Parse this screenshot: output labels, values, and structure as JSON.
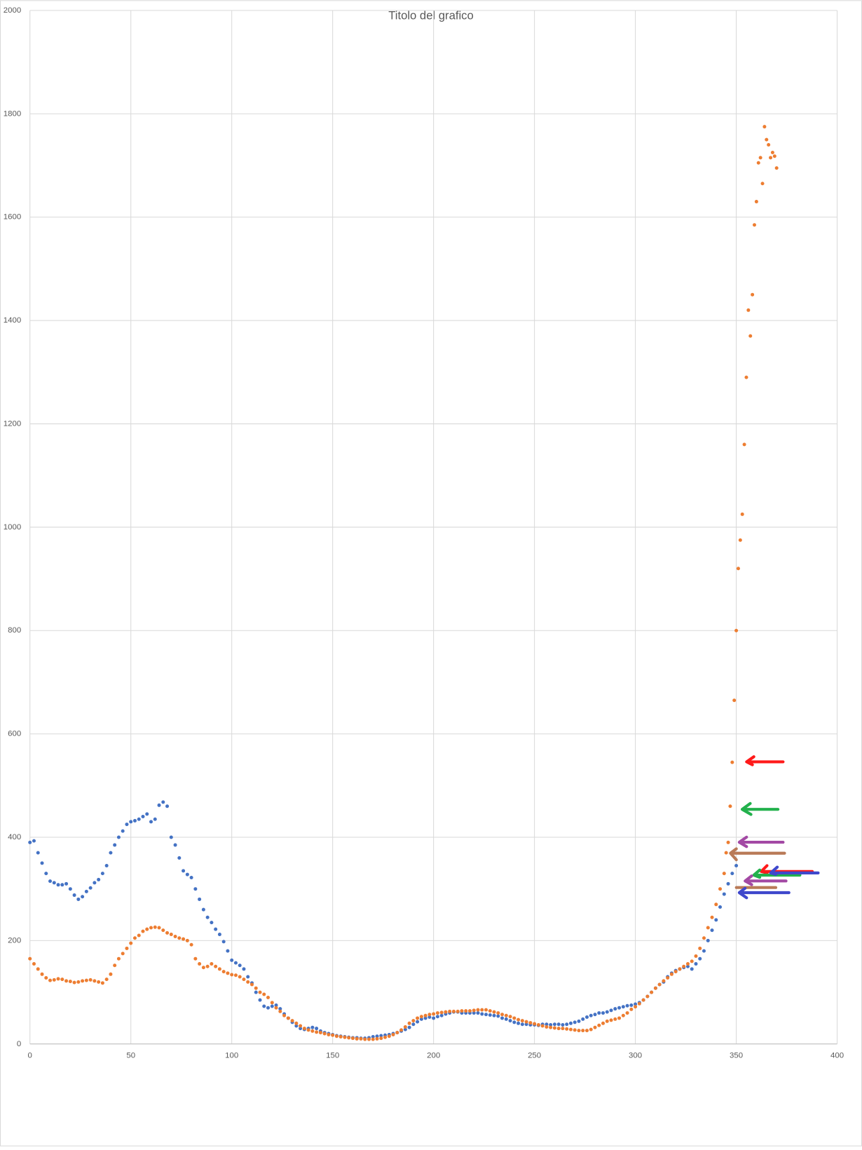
{
  "chart_data": {
    "type": "scatter",
    "title": "Titolo del grafico",
    "xlim": [
      0,
      400
    ],
    "xticks": [
      0,
      50,
      100,
      150,
      200,
      250,
      300,
      350,
      400
    ],
    "ylim": [
      0,
      2000
    ],
    "yticks": [
      0,
      200,
      400,
      600,
      800,
      1000,
      1200,
      1400,
      1600,
      1800,
      2000
    ],
    "grid": true,
    "series": [
      {
        "color": "#4472c4",
        "x": [
          0,
          2,
          4,
          6,
          8,
          10,
          12,
          14,
          16,
          18,
          20,
          22,
          24,
          26,
          28,
          30,
          32,
          34,
          36,
          38,
          40,
          42,
          44,
          46,
          48,
          50,
          52,
          54,
          56,
          58,
          60,
          62,
          64,
          66,
          68,
          70,
          72,
          74,
          76,
          78,
          80,
          82,
          84,
          86,
          88,
          90,
          92,
          94,
          96,
          98,
          100,
          102,
          104,
          106,
          108,
          110,
          112,
          114,
          116,
          118,
          120,
          122,
          124,
          126,
          128,
          130,
          132,
          134,
          136,
          138,
          140,
          142,
          144,
          146,
          148,
          150,
          152,
          154,
          156,
          158,
          160,
          162,
          164,
          166,
          168,
          170,
          172,
          174,
          176,
          178,
          180,
          182,
          184,
          186,
          188,
          190,
          192,
          194,
          196,
          198,
          200,
          202,
          204,
          206,
          208,
          210,
          212,
          214,
          216,
          218,
          220,
          222,
          224,
          226,
          228,
          230,
          232,
          234,
          236,
          238,
          240,
          242,
          244,
          246,
          248,
          250,
          252,
          254,
          256,
          258,
          260,
          262,
          264,
          266,
          268,
          270,
          272,
          274,
          276,
          278,
          280,
          282,
          284,
          286,
          288,
          290,
          292,
          294,
          296,
          298,
          300,
          302,
          304,
          306,
          308,
          310,
          312,
          314,
          316,
          318,
          320,
          322,
          324,
          326,
          328,
          330,
          332,
          334,
          336,
          338,
          340,
          342,
          344,
          346,
          348,
          350
        ],
        "values": [
          390,
          393,
          370,
          350,
          330,
          315,
          312,
          308,
          308,
          310,
          300,
          288,
          280,
          285,
          295,
          302,
          312,
          318,
          330,
          345,
          370,
          385,
          400,
          412,
          425,
          430,
          432,
          435,
          440,
          445,
          430,
          435,
          462,
          468,
          460,
          400,
          385,
          360,
          335,
          328,
          322,
          300,
          280,
          260,
          245,
          235,
          222,
          212,
          198,
          180,
          162,
          157,
          152,
          145,
          130,
          118,
          100,
          85,
          73,
          70,
          73,
          75,
          68,
          58,
          50,
          42,
          35,
          30,
          28,
          30,
          32,
          30,
          25,
          22,
          20,
          18,
          16,
          15,
          14,
          13,
          12,
          12,
          11,
          11,
          12,
          14,
          15,
          16,
          17,
          18,
          20,
          22,
          25,
          28,
          32,
          38,
          43,
          48,
          50,
          52,
          50,
          53,
          55,
          58,
          60,
          62,
          62,
          60,
          60,
          60,
          60,
          60,
          58,
          57,
          56,
          55,
          54,
          50,
          48,
          45,
          42,
          40,
          38,
          38,
          37,
          37,
          36,
          38,
          38,
          37,
          38,
          38,
          37,
          38,
          40,
          42,
          44,
          48,
          52,
          55,
          57,
          60,
          60,
          62,
          65,
          68,
          70,
          72,
          74,
          75,
          77,
          80,
          85,
          92,
          100,
          108,
          115,
          120,
          130,
          137,
          142,
          145,
          148,
          150,
          145,
          155,
          165,
          180,
          200,
          220,
          240,
          265,
          290,
          310,
          330,
          345
        ]
      },
      {
        "color": "#ed7d31",
        "x": [
          0,
          2,
          4,
          6,
          8,
          10,
          12,
          14,
          16,
          18,
          20,
          22,
          24,
          26,
          28,
          30,
          32,
          34,
          36,
          38,
          40,
          42,
          44,
          46,
          48,
          50,
          52,
          54,
          56,
          58,
          60,
          62,
          64,
          66,
          68,
          70,
          72,
          74,
          76,
          78,
          80,
          82,
          84,
          86,
          88,
          90,
          92,
          94,
          96,
          98,
          100,
          102,
          104,
          106,
          108,
          110,
          112,
          114,
          116,
          118,
          120,
          122,
          124,
          126,
          128,
          130,
          132,
          134,
          136,
          138,
          140,
          142,
          144,
          146,
          148,
          150,
          152,
          154,
          156,
          158,
          160,
          162,
          164,
          166,
          168,
          170,
          172,
          174,
          176,
          178,
          180,
          182,
          184,
          186,
          188,
          190,
          192,
          194,
          196,
          198,
          200,
          202,
          204,
          206,
          208,
          210,
          212,
          214,
          216,
          218,
          220,
          222,
          224,
          226,
          228,
          230,
          232,
          234,
          236,
          238,
          240,
          242,
          244,
          246,
          248,
          250,
          252,
          254,
          256,
          258,
          260,
          262,
          264,
          266,
          268,
          270,
          272,
          274,
          276,
          278,
          280,
          282,
          284,
          286,
          288,
          290,
          292,
          294,
          296,
          298,
          300,
          302,
          304,
          306,
          308,
          310,
          312,
          314,
          316,
          318,
          320,
          322,
          324,
          326,
          328,
          330,
          332,
          334,
          336,
          338,
          340,
          342,
          344,
          345,
          346,
          347,
          348,
          349,
          350,
          351,
          352,
          353,
          354,
          355,
          356,
          357,
          358,
          359,
          360,
          361,
          362,
          363,
          364,
          365,
          366,
          367,
          368,
          369,
          370
        ],
        "values": [
          165,
          155,
          145,
          135,
          128,
          123,
          124,
          126,
          125,
          122,
          121,
          119,
          120,
          122,
          123,
          124,
          122,
          120,
          118,
          125,
          135,
          152,
          165,
          175,
          185,
          195,
          205,
          210,
          218,
          222,
          225,
          226,
          225,
          220,
          215,
          212,
          208,
          205,
          203,
          200,
          192,
          165,
          155,
          148,
          150,
          155,
          150,
          145,
          140,
          137,
          134,
          133,
          130,
          125,
          120,
          115,
          108,
          100,
          96,
          90,
          80,
          70,
          63,
          55,
          50,
          45,
          40,
          35,
          30,
          27,
          25,
          23,
          22,
          20,
          18,
          17,
          15,
          14,
          13,
          12,
          11,
          10,
          10,
          9,
          9,
          9,
          10,
          11,
          13,
          15,
          18,
          22,
          27,
          33,
          40,
          45,
          50,
          53,
          55,
          57,
          58,
          60,
          61,
          62,
          63,
          63,
          63,
          64,
          64,
          64,
          65,
          66,
          66,
          66,
          64,
          62,
          60,
          57,
          55,
          53,
          50,
          47,
          45,
          43,
          41,
          39,
          37,
          35,
          33,
          32,
          31,
          30,
          30,
          29,
          28,
          27,
          26,
          26,
          26,
          28,
          32,
          36,
          40,
          44,
          46,
          48,
          50,
          55,
          60,
          67,
          72,
          78,
          85,
          92,
          100,
          108,
          115,
          122,
          128,
          135,
          140,
          145,
          150,
          155,
          160,
          170,
          185,
          205,
          225,
          245,
          270,
          300,
          330,
          370,
          390,
          460,
          545,
          665,
          800,
          920,
          975,
          1025,
          1160,
          1290,
          1420,
          1370,
          1450,
          1585,
          1630,
          1705,
          1715,
          1665,
          1775,
          1750,
          1740,
          1715,
          1725,
          1718,
          1695
        ]
      }
    ]
  }
}
